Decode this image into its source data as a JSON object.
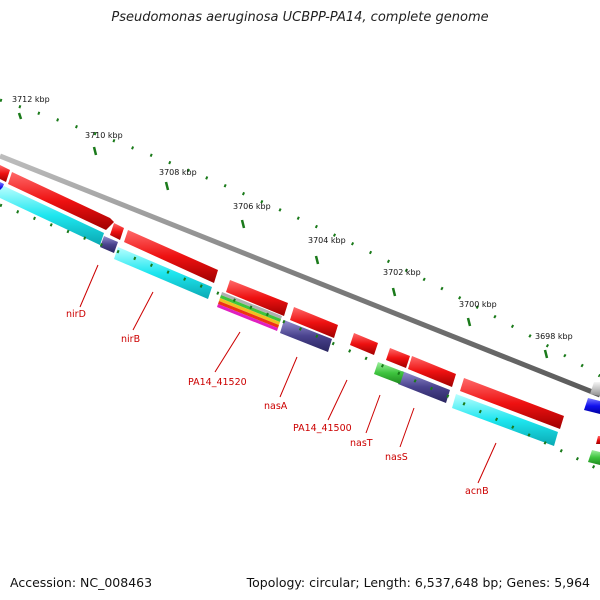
{
  "title": "Pseudomonas aeruginosa UCBPP-PA14, complete genome",
  "footer": {
    "accession": "Accession: NC_008463",
    "topology": "Topology: circular; Length: 6,537,648 bp; Genes: 5,964"
  },
  "ticks": [
    "3712 kbp",
    "3710 kbp",
    "3708 kbp",
    "3706 kbp",
    "3704 kbp",
    "3702 kbp",
    "3700 kbp",
    "3698 kbp"
  ],
  "gene_labels": [
    "nirD",
    "nirB",
    "PA14_41520",
    "nasA",
    "PA14_41500",
    "nasT",
    "nasS",
    "acnB"
  ],
  "colors": {
    "forward_cds": "#ee1111",
    "cyan_track": "#18e8f0",
    "purple_track": "#4a438e",
    "green_track": "#3ec43e",
    "backbone": "#8a8a8a",
    "label": "#cc0000",
    "tick": "#1a7a1a"
  }
}
